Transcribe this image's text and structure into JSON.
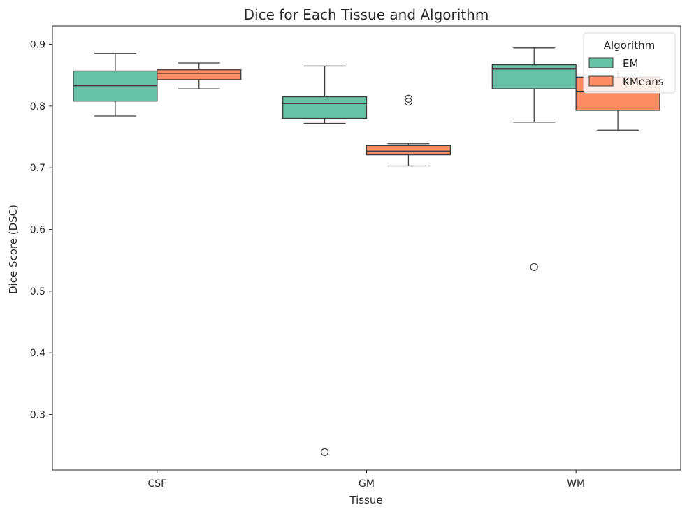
{
  "chart_data": {
    "type": "boxplot",
    "title": "Dice for Each Tissue and Algorithm",
    "xlabel": "Tissue",
    "ylabel": "Dice Score (DSC)",
    "categories": [
      "CSF",
      "GM",
      "WM"
    ],
    "ylim": [
      0.21,
      0.93
    ],
    "yticks": [
      0.3,
      0.4,
      0.5,
      0.6,
      0.7,
      0.8,
      0.9
    ],
    "ytick_labels": [
      "0.3",
      "0.4",
      "0.5",
      "0.6",
      "0.7",
      "0.8",
      "0.9"
    ],
    "grid": false,
    "legend": {
      "title": "Algorithm",
      "position": "top-right"
    },
    "series": [
      {
        "name": "EM",
        "color": "#66c2a5",
        "boxes": [
          {
            "category": "CSF",
            "whislo": 0.784,
            "q1": 0.808,
            "median": 0.833,
            "q3": 0.857,
            "whishi": 0.885,
            "outliers": []
          },
          {
            "category": "GM",
            "whislo": 0.772,
            "q1": 0.78,
            "median": 0.804,
            "q3": 0.815,
            "whishi": 0.865,
            "outliers": [
              0.239
            ]
          },
          {
            "category": "WM",
            "whislo": 0.774,
            "q1": 0.828,
            "median": 0.86,
            "q3": 0.867,
            "whishi": 0.894,
            "outliers": [
              0.539
            ]
          }
        ]
      },
      {
        "name": "KMeans",
        "color": "#fc8d62",
        "boxes": [
          {
            "category": "CSF",
            "whislo": 0.828,
            "q1": 0.843,
            "median": 0.853,
            "q3": 0.859,
            "whishi": 0.87,
            "outliers": []
          },
          {
            "category": "GM",
            "whislo": 0.703,
            "q1": 0.721,
            "median": 0.727,
            "q3": 0.736,
            "whishi": 0.739,
            "outliers": [
              0.807,
              0.812
            ]
          },
          {
            "category": "WM",
            "whislo": 0.761,
            "q1": 0.793,
            "median": 0.823,
            "q3": 0.847,
            "whishi": 0.857,
            "outliers": []
          }
        ]
      }
    ]
  }
}
